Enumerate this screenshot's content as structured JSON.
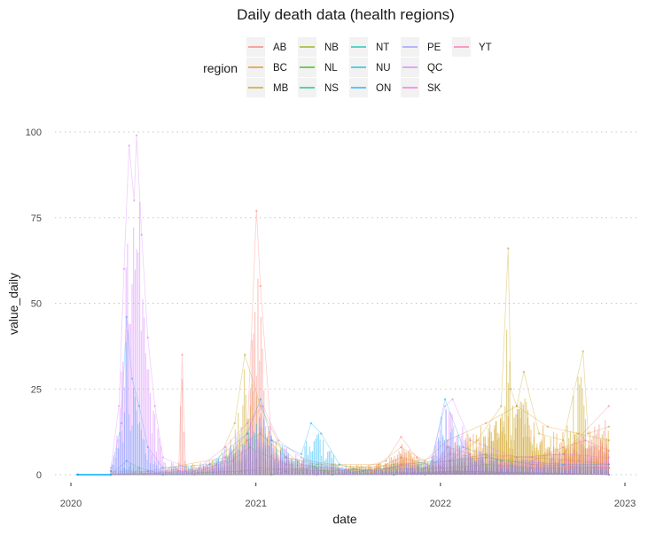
{
  "chart_data": {
    "type": "line",
    "title": "Daily death data (health regions)",
    "xlabel": "date",
    "ylabel": "value_daily",
    "x_ticks": [
      "2020",
      "2021",
      "2022",
      "2023"
    ],
    "y_ticks": [
      0,
      25,
      50,
      75,
      100
    ],
    "ylim": [
      0,
      100
    ],
    "xlim": [
      "2020-01-01",
      "2022-12-31"
    ],
    "grid": "horizontal-dotted",
    "legend": {
      "title": "region",
      "placement": "top",
      "entries": [
        {
          "name": "AB",
          "color": "#F8766D"
        },
        {
          "name": "BC",
          "color": "#E18A00"
        },
        {
          "name": "MB",
          "color": "#BE9C00"
        },
        {
          "name": "NB",
          "color": "#8CAB00"
        },
        {
          "name": "NL",
          "color": "#24B700"
        },
        {
          "name": "NS",
          "color": "#00BE70"
        },
        {
          "name": "NT",
          "color": "#00C1AB"
        },
        {
          "name": "NU",
          "color": "#00BBDA"
        },
        {
          "name": "ON",
          "color": "#00ACFC"
        },
        {
          "name": "PE",
          "color": "#8B93FF"
        },
        {
          "name": "QC",
          "color": "#D575FE"
        },
        {
          "name": "SK",
          "color": "#F962DD"
        },
        {
          "name": "YT",
          "color": "#FF65AC"
        }
      ]
    },
    "series": [
      {
        "name": "QC",
        "x": [
          "2020-03-20",
          "2020-04-05",
          "2020-04-15",
          "2020-04-25",
          "2020-05-05",
          "2020-05-10",
          "2020-05-20",
          "2020-06-01",
          "2020-06-15",
          "2020-07-01",
          "2020-09-01",
          "2020-11-01",
          "2020-12-15",
          "2021-01-15",
          "2021-02-15",
          "2021-04-01",
          "2021-06-01",
          "2021-09-01",
          "2021-12-15",
          "2022-01-10",
          "2022-01-25",
          "2022-03-01",
          "2022-06-01",
          "2022-09-01",
          "2022-11-30"
        ],
        "values": [
          2,
          20,
          60,
          96,
          80,
          99,
          70,
          40,
          20,
          5,
          1,
          8,
          15,
          20,
          10,
          5,
          2,
          1,
          5,
          20,
          22,
          10,
          5,
          6,
          5
        ]
      },
      {
        "name": "ON",
        "x": [
          "2020-03-20",
          "2020-04-10",
          "2020-04-20",
          "2020-05-01",
          "2020-05-15",
          "2020-06-01",
          "2020-07-01",
          "2020-10-01",
          "2020-12-15",
          "2021-01-10",
          "2021-02-01",
          "2021-04-01",
          "2021-04-20",
          "2021-05-10",
          "2021-06-15",
          "2021-08-01",
          "2021-12-15",
          "2022-01-10",
          "2022-02-15",
          "2022-05-01",
          "2022-09-01",
          "2022-11-30"
        ],
        "values": [
          1,
          15,
          46,
          28,
          20,
          8,
          2,
          3,
          12,
          22,
          10,
          6,
          15,
          12,
          3,
          1,
          4,
          22,
          8,
          4,
          3,
          3
        ]
      },
      {
        "name": "AB",
        "x": [
          "2020-03-20",
          "2020-06-01",
          "2020-08-01",
          "2020-08-08",
          "2020-08-15",
          "2020-11-01",
          "2020-12-15",
          "2021-01-02",
          "2021-01-10",
          "2021-02-01",
          "2021-04-01",
          "2021-07-01",
          "2021-09-15",
          "2021-10-15",
          "2021-11-15",
          "2021-12-15",
          "2022-01-15",
          "2022-03-01",
          "2022-06-01",
          "2022-09-01",
          "2022-11-30"
        ],
        "values": [
          0,
          1,
          1,
          35,
          1,
          4,
          12,
          77,
          55,
          10,
          3,
          1,
          4,
          11,
          5,
          2,
          8,
          6,
          5,
          6,
          20
        ]
      },
      {
        "name": "MB",
        "x": [
          "2020-09-01",
          "2020-10-15",
          "2020-11-20",
          "2020-12-10",
          "2021-01-10",
          "2021-03-01",
          "2021-05-01",
          "2021-09-01",
          "2021-10-15",
          "2022-01-01",
          "2022-03-15",
          "2022-05-01",
          "2022-05-15",
          "2022-05-20",
          "2022-06-01",
          "2022-06-15",
          "2022-07-15",
          "2022-09-01",
          "2022-10-10",
          "2022-10-20",
          "2022-11-30"
        ],
        "values": [
          0,
          3,
          15,
          35,
          20,
          5,
          3,
          2,
          5,
          2,
          10,
          20,
          66,
          25,
          20,
          30,
          12,
          10,
          36,
          12,
          14
        ]
      },
      {
        "name": "BC",
        "x": [
          "2020-03-20",
          "2020-06-01",
          "2020-11-01",
          "2020-12-15",
          "2021-01-10",
          "2021-03-01",
          "2021-06-01",
          "2021-09-01",
          "2021-10-15",
          "2021-12-01",
          "2022-01-15",
          "2022-04-01",
          "2022-06-01",
          "2022-08-01",
          "2022-10-01",
          "2022-11-30"
        ],
        "values": [
          1,
          1,
          5,
          10,
          12,
          5,
          3,
          3,
          8,
          4,
          10,
          15,
          20,
          14,
          12,
          10
        ]
      },
      {
        "name": "SK",
        "x": [
          "2020-03-20",
          "2020-09-01",
          "2020-11-15",
          "2020-12-20",
          "2021-01-15",
          "2021-03-01",
          "2021-06-01",
          "2021-09-01",
          "2021-10-15",
          "2021-12-01",
          "2022-01-20",
          "2022-04-01",
          "2022-07-01",
          "2022-09-01",
          "2022-10-15",
          "2022-11-30"
        ],
        "values": [
          0,
          1,
          4,
          8,
          6,
          3,
          2,
          1,
          3,
          2,
          6,
          5,
          4,
          8,
          10,
          7
        ]
      },
      {
        "name": "NB",
        "x": [
          "2020-03-20",
          "2020-12-01",
          "2021-01-10",
          "2021-06-01",
          "2021-10-01",
          "2022-01-20",
          "2022-04-01",
          "2022-07-01",
          "2022-10-01",
          "2022-11-30"
        ],
        "values": [
          0,
          1,
          2,
          1,
          3,
          4,
          6,
          5,
          4,
          3
        ]
      },
      {
        "name": "NS",
        "x": [
          "2020-03-20",
          "2020-04-20",
          "2020-05-15",
          "2020-07-01",
          "2021-05-01",
          "2021-06-01",
          "2022-01-20",
          "2022-04-01",
          "2022-07-01",
          "2022-11-30"
        ],
        "values": [
          0,
          4,
          2,
          0,
          2,
          0,
          4,
          5,
          3,
          2
        ]
      },
      {
        "name": "NL",
        "x": [
          "2020-03-20",
          "2021-02-01",
          "2021-03-01",
          "2022-01-20",
          "2022-04-01",
          "2022-07-01",
          "2022-11-30"
        ],
        "values": [
          0,
          0,
          1,
          2,
          3,
          2,
          2
        ]
      },
      {
        "name": "NT",
        "x": [
          "2020-01-15",
          "2021-10-01",
          "2022-01-20",
          "2022-11-30"
        ],
        "values": [
          0,
          0,
          1,
          0
        ]
      },
      {
        "name": "NU",
        "x": [
          "2020-01-15",
          "2021-05-01",
          "2022-02-01",
          "2022-11-30"
        ],
        "values": [
          0,
          0,
          1,
          0
        ]
      },
      {
        "name": "PE",
        "x": [
          "2020-01-15",
          "2021-12-01",
          "2022-01-20",
          "2022-05-01",
          "2022-11-30"
        ],
        "values": [
          0,
          0,
          1,
          1,
          0
        ]
      },
      {
        "name": "YT",
        "x": [
          "2020-01-15",
          "2021-10-01",
          "2022-01-20",
          "2022-11-30"
        ],
        "values": [
          0,
          0,
          1,
          0
        ]
      }
    ]
  }
}
